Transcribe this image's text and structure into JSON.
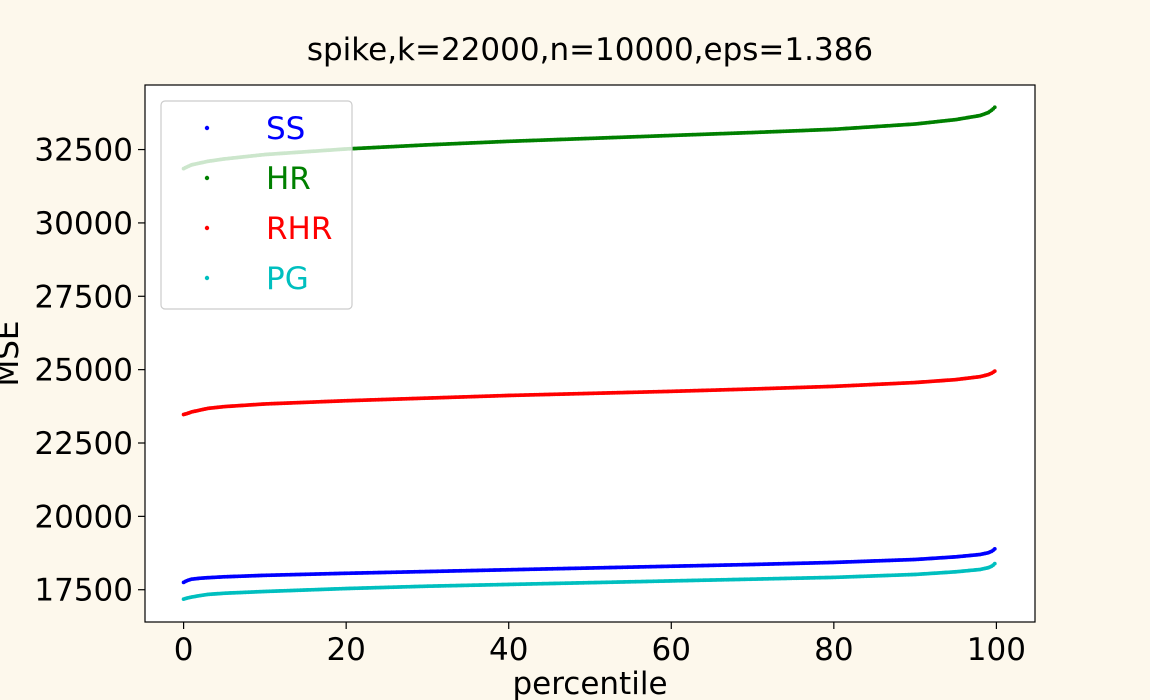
{
  "chart_data": {
    "type": "scatter",
    "title": "spike,k=22000,n=10000,eps=1.386",
    "xlabel": "percentile",
    "ylabel": "MSE",
    "xlim": [
      -4.75,
      104.75
    ],
    "ylim": [
      16400,
      34700
    ],
    "xticks": [
      0,
      20,
      40,
      60,
      80,
      100
    ],
    "yticks": [
      17500,
      20000,
      22500,
      25000,
      27500,
      30000,
      32500
    ],
    "grid": false,
    "legend_position": "upper left",
    "series": [
      {
        "name": "SS",
        "color": "#0000ff",
        "points": [
          [
            0,
            17750
          ],
          [
            0.5,
            17820
          ],
          [
            1,
            17860
          ],
          [
            2,
            17890
          ],
          [
            3,
            17910
          ],
          [
            5,
            17940
          ],
          [
            10,
            17990
          ],
          [
            20,
            18060
          ],
          [
            30,
            18120
          ],
          [
            40,
            18180
          ],
          [
            50,
            18240
          ],
          [
            60,
            18300
          ],
          [
            70,
            18360
          ],
          [
            80,
            18430
          ],
          [
            90,
            18530
          ],
          [
            95,
            18620
          ],
          [
            98,
            18700
          ],
          [
            99,
            18760
          ],
          [
            99.5,
            18820
          ],
          [
            99.8,
            18890
          ]
        ]
      },
      {
        "name": "HR",
        "color": "#008000",
        "points": [
          [
            0,
            31850
          ],
          [
            0.5,
            31920
          ],
          [
            1,
            31980
          ],
          [
            2,
            32040
          ],
          [
            3,
            32100
          ],
          [
            5,
            32180
          ],
          [
            10,
            32330
          ],
          [
            20,
            32520
          ],
          [
            30,
            32660
          ],
          [
            40,
            32780
          ],
          [
            50,
            32880
          ],
          [
            60,
            32980
          ],
          [
            70,
            33080
          ],
          [
            80,
            33190
          ],
          [
            90,
            33370
          ],
          [
            95,
            33520
          ],
          [
            98,
            33660
          ],
          [
            99,
            33760
          ],
          [
            99.5,
            33860
          ],
          [
            99.8,
            33940
          ]
        ]
      },
      {
        "name": "RHR",
        "color": "#ff0000",
        "points": [
          [
            0,
            23470
          ],
          [
            0.5,
            23510
          ],
          [
            1,
            23560
          ],
          [
            2,
            23620
          ],
          [
            3,
            23680
          ],
          [
            5,
            23740
          ],
          [
            10,
            23830
          ],
          [
            20,
            23940
          ],
          [
            30,
            24030
          ],
          [
            40,
            24120
          ],
          [
            50,
            24190
          ],
          [
            60,
            24260
          ],
          [
            70,
            24340
          ],
          [
            80,
            24430
          ],
          [
            90,
            24560
          ],
          [
            95,
            24660
          ],
          [
            98,
            24760
          ],
          [
            99,
            24830
          ],
          [
            99.5,
            24890
          ],
          [
            99.8,
            24950
          ]
        ]
      },
      {
        "name": "PG",
        "color": "#00bfbf",
        "points": [
          [
            0,
            17180
          ],
          [
            0.5,
            17220
          ],
          [
            1,
            17250
          ],
          [
            2,
            17300
          ],
          [
            3,
            17340
          ],
          [
            5,
            17380
          ],
          [
            10,
            17440
          ],
          [
            20,
            17540
          ],
          [
            30,
            17620
          ],
          [
            40,
            17680
          ],
          [
            50,
            17740
          ],
          [
            60,
            17800
          ],
          [
            70,
            17860
          ],
          [
            80,
            17920
          ],
          [
            90,
            18020
          ],
          [
            95,
            18110
          ],
          [
            98,
            18190
          ],
          [
            99,
            18250
          ],
          [
            99.5,
            18310
          ],
          [
            99.8,
            18390
          ]
        ]
      }
    ]
  }
}
